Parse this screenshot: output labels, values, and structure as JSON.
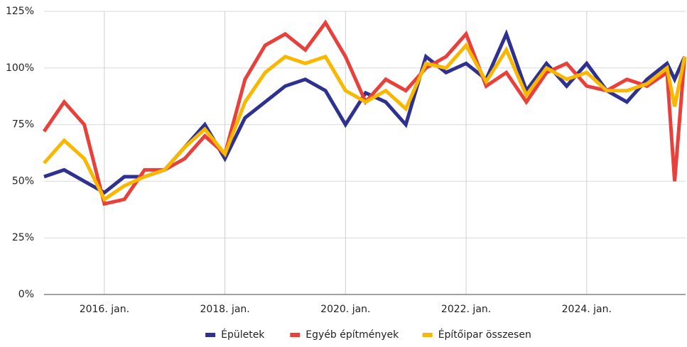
{
  "chart_data": {
    "type": "line",
    "x": [
      2015,
      2015.333,
      2015.667,
      2016,
      2016.333,
      2016.667,
      2017,
      2017.333,
      2017.667,
      2018,
      2018.333,
      2018.667,
      2019,
      2019.333,
      2019.667,
      2020,
      2020.333,
      2020.667,
      2021,
      2021.333,
      2021.667,
      2022,
      2022.333,
      2022.667,
      2023,
      2023.333,
      2023.667,
      2024,
      2024.333,
      2024.667,
      2025,
      2025.333,
      2025.458,
      2025.625
    ],
    "series": [
      {
        "name": "Épületek",
        "color": "#2e3190",
        "values": [
          52,
          55,
          50,
          45,
          52,
          52,
          55,
          65,
          75,
          60,
          78,
          85,
          92,
          95,
          90,
          75,
          89,
          85,
          75,
          105,
          98,
          102,
          95,
          115,
          90,
          102,
          92,
          102,
          90,
          85,
          95,
          102,
          95,
          105
        ]
      },
      {
        "name": "Egyéb építmények",
        "color": "#e8413b",
        "values": [
          72,
          85,
          75,
          40,
          42,
          55,
          55,
          60,
          70,
          62,
          95,
          110,
          115,
          108,
          120,
          105,
          85,
          95,
          90,
          100,
          105,
          115,
          92,
          98,
          85,
          98,
          102,
          92,
          90,
          95,
          92,
          98,
          50,
          105
        ]
      },
      {
        "name": "Építőipar összesen",
        "color": "#f9b700",
        "values": [
          58,
          68,
          60,
          42,
          48,
          52,
          55,
          65,
          73,
          62,
          85,
          98,
          105,
          102,
          105,
          90,
          85,
          90,
          82,
          102,
          100,
          110,
          94,
          108,
          88,
          100,
          95,
          98,
          90,
          90,
          93,
          100,
          83,
          105
        ]
      }
    ],
    "xlim": [
      2015,
      2025.64
    ],
    "xticks": [
      {
        "value": 2016,
        "label": "2016. jan."
      },
      {
        "value": 2018,
        "label": "2018. jan."
      },
      {
        "value": 2020,
        "label": "2020. jan."
      },
      {
        "value": 2022,
        "label": "2022. jan."
      },
      {
        "value": 2024,
        "label": "2024. jan."
      }
    ],
    "ylim": [
      0,
      125
    ],
    "yticks": [
      {
        "value": 0,
        "label": "0%"
      },
      {
        "value": 25,
        "label": "25%"
      },
      {
        "value": 50,
        "label": "50%"
      },
      {
        "value": 75,
        "label": "75%"
      },
      {
        "value": 100,
        "label": "100%"
      },
      {
        "value": 125,
        "label": "125%"
      }
    ],
    "grid": true,
    "legend": "bottom"
  }
}
